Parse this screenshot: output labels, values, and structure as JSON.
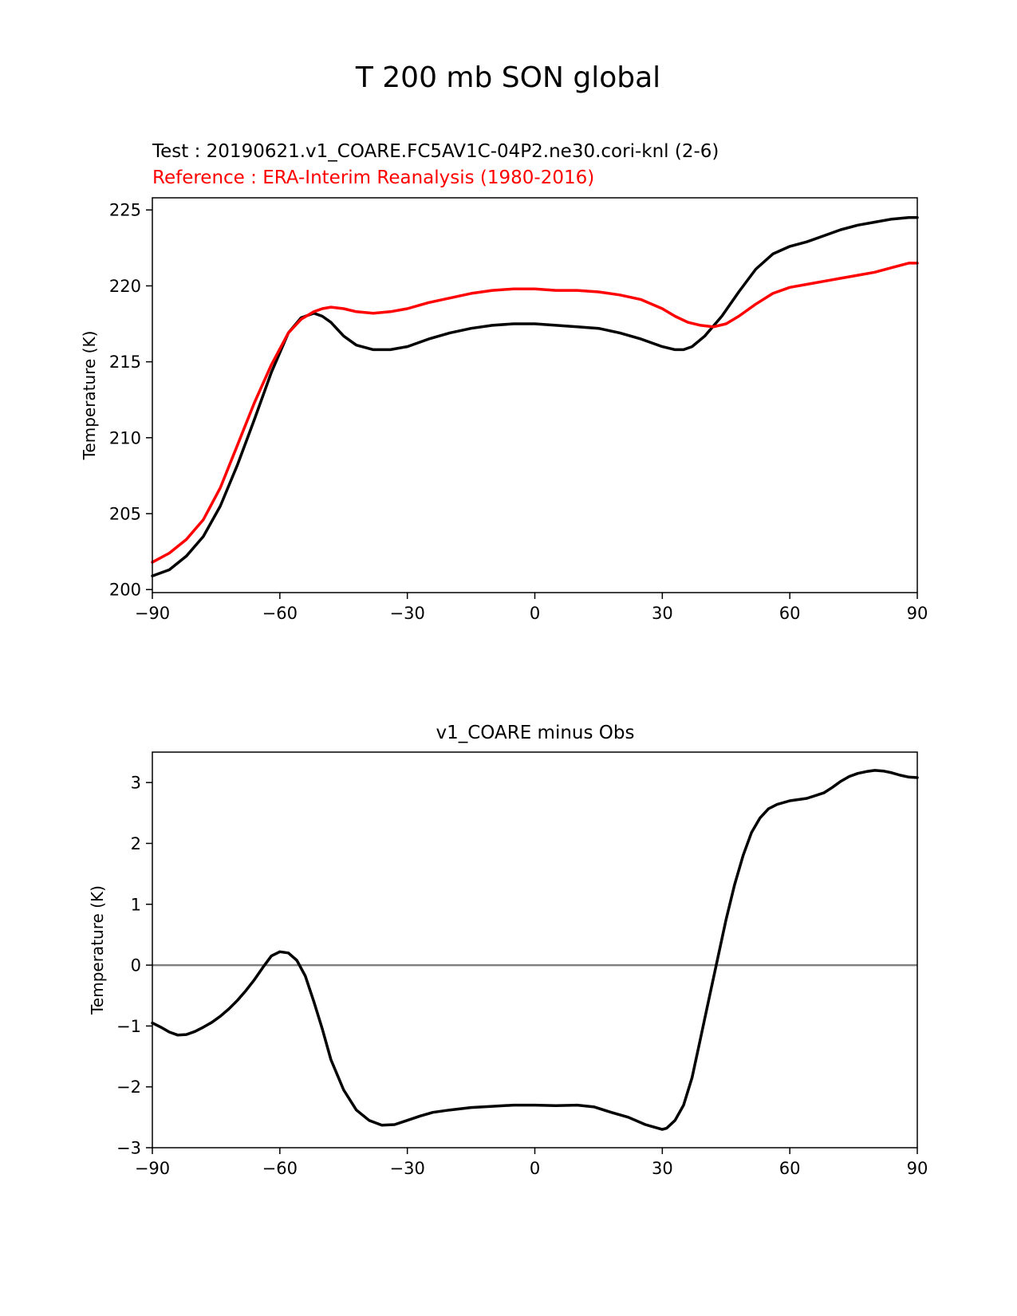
{
  "figure": {
    "title": "T 200 mb SON global"
  },
  "chart_data": [
    {
      "type": "line",
      "test_label": "Test : 20190621.v1_COARE.FC5AV1C-04P2.ne30.cori-knl (2-6)",
      "reference_label": "Reference : ERA-Interim Reanalysis (1980-2016)",
      "xlabel": "",
      "ylabel": "Temperature (K)",
      "xlim": [
        -90,
        90
      ],
      "ylim": [
        199.8,
        225.8
      ],
      "xticks": [
        -90,
        -60,
        -30,
        0,
        30,
        60,
        90
      ],
      "xtick_labels": [
        "−90",
        "−60",
        "−30",
        "0",
        "30",
        "60",
        "90"
      ],
      "yticks": [
        200,
        205,
        210,
        215,
        220,
        225
      ],
      "ytick_labels": [
        "200",
        "205",
        "210",
        "215",
        "220",
        "225"
      ],
      "series": [
        {
          "name": "Test",
          "color": "#000000",
          "x": [
            -90,
            -86,
            -82,
            -78,
            -74,
            -70,
            -66,
            -62,
            -58,
            -55,
            -52,
            -50,
            -48,
            -45,
            -42,
            -38,
            -34,
            -30,
            -25,
            -20,
            -15,
            -10,
            -5,
            0,
            5,
            10,
            15,
            20,
            25,
            30,
            33,
            35,
            37,
            40,
            44,
            48,
            52,
            56,
            60,
            64,
            68,
            72,
            76,
            80,
            84,
            88,
            90
          ],
          "values": [
            200.9,
            201.3,
            202.2,
            203.5,
            205.5,
            208.2,
            211.2,
            214.3,
            216.9,
            217.9,
            218.2,
            218.0,
            217.6,
            216.7,
            216.1,
            215.8,
            215.8,
            216.0,
            216.5,
            216.9,
            217.2,
            217.4,
            217.5,
            217.5,
            217.4,
            217.3,
            217.2,
            216.9,
            216.5,
            216.0,
            215.8,
            215.8,
            216.0,
            216.7,
            218.0,
            219.6,
            221.1,
            222.1,
            222.6,
            222.9,
            223.3,
            223.7,
            224.0,
            224.2,
            224.4,
            224.5,
            224.5
          ]
        },
        {
          "name": "Reference",
          "color": "#ff0000",
          "x": [
            -90,
            -86,
            -82,
            -78,
            -74,
            -70,
            -66,
            -62,
            -58,
            -55,
            -52,
            -50,
            -48,
            -45,
            -42,
            -38,
            -34,
            -30,
            -25,
            -20,
            -15,
            -10,
            -5,
            0,
            5,
            10,
            15,
            20,
            25,
            30,
            33,
            36,
            39,
            42,
            45,
            48,
            52,
            56,
            60,
            64,
            68,
            72,
            76,
            80,
            84,
            88,
            90
          ],
          "values": [
            201.8,
            202.4,
            203.3,
            204.6,
            206.7,
            209.5,
            212.3,
            214.8,
            216.9,
            217.8,
            218.3,
            218.5,
            218.6,
            218.5,
            218.3,
            218.2,
            218.3,
            218.5,
            218.9,
            219.2,
            219.5,
            219.7,
            219.8,
            219.8,
            219.7,
            219.7,
            219.6,
            219.4,
            219.1,
            218.5,
            218.0,
            217.6,
            217.4,
            217.3,
            217.5,
            218.0,
            218.8,
            219.5,
            219.9,
            220.1,
            220.3,
            220.5,
            220.7,
            220.9,
            221.2,
            221.5,
            221.5
          ]
        }
      ]
    },
    {
      "type": "line",
      "title": "v1_COARE minus Obs",
      "xlabel": "",
      "ylabel": "Temperature (K)",
      "xlim": [
        -90,
        90
      ],
      "ylim": [
        -3,
        3.5
      ],
      "xticks": [
        -90,
        -60,
        -30,
        0,
        30,
        60,
        90
      ],
      "xtick_labels": [
        "−90",
        "−60",
        "−30",
        "0",
        "30",
        "60",
        "90"
      ],
      "yticks": [
        -3,
        -2,
        -1,
        0,
        1,
        2,
        3
      ],
      "ytick_labels": [
        "−3",
        "−2",
        "−1",
        "0",
        "1",
        "2",
        "3"
      ],
      "zero_line": {
        "y": 0,
        "color": "#808080"
      },
      "series": [
        {
          "name": "v1_COARE minus Obs",
          "color": "#000000",
          "x": [
            -90,
            -88,
            -86,
            -84,
            -82,
            -80,
            -78,
            -76,
            -74,
            -72,
            -70,
            -68,
            -66,
            -64,
            -62,
            -60,
            -58,
            -56,
            -54,
            -52,
            -50,
            -48,
            -45,
            -42,
            -39,
            -36,
            -33,
            -30,
            -27,
            -24,
            -20,
            -15,
            -10,
            -5,
            0,
            5,
            10,
            14,
            18,
            22,
            26,
            28,
            30,
            31,
            33,
            35,
            37,
            39,
            41,
            43,
            45,
            47,
            49,
            51,
            53,
            55,
            57,
            60,
            64,
            68,
            70,
            72,
            74,
            76,
            78,
            80,
            82,
            84,
            86,
            88,
            90
          ],
          "values": [
            -0.95,
            -1.02,
            -1.1,
            -1.15,
            -1.14,
            -1.09,
            -1.02,
            -0.94,
            -0.84,
            -0.72,
            -0.58,
            -0.42,
            -0.24,
            -0.04,
            0.15,
            0.22,
            0.2,
            0.08,
            -0.18,
            -0.6,
            -1.05,
            -1.55,
            -2.05,
            -2.38,
            -2.55,
            -2.63,
            -2.62,
            -2.55,
            -2.48,
            -2.42,
            -2.38,
            -2.34,
            -2.32,
            -2.3,
            -2.3,
            -2.31,
            -2.3,
            -2.33,
            -2.42,
            -2.5,
            -2.62,
            -2.66,
            -2.7,
            -2.68,
            -2.55,
            -2.3,
            -1.85,
            -1.2,
            -0.55,
            0.1,
            0.75,
            1.32,
            1.8,
            2.18,
            2.42,
            2.57,
            2.64,
            2.7,
            2.74,
            2.83,
            2.92,
            3.02,
            3.1,
            3.15,
            3.18,
            3.2,
            3.19,
            3.16,
            3.12,
            3.09,
            3.08
          ]
        }
      ]
    }
  ]
}
